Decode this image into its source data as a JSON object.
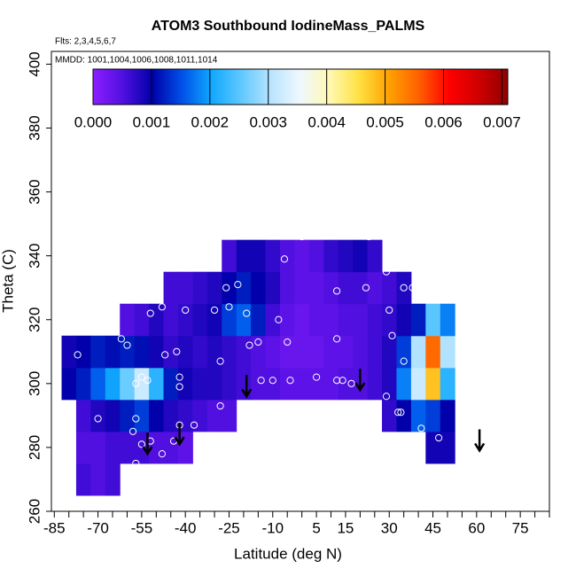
{
  "chart_data": {
    "type": "heatmap",
    "title": "ATOM3 Southbound IodineMass_PALMS",
    "subtitle": "Flts: 2,3,4,5,6,7",
    "annotation": "MMDD: 1001,1004,1006,1008,1011,1014",
    "xlabel": "Latitude (deg N)",
    "ylabel": "Theta (C)",
    "xlim": [
      -86,
      85
    ],
    "ylim": [
      260,
      404
    ],
    "xticks": [
      -85,
      -70,
      -55,
      -40,
      -25,
      -10,
      5,
      15,
      30,
      45,
      60,
      75
    ],
    "xminorticks": [
      -80,
      -75,
      -65,
      -60,
      -50,
      -45,
      -35,
      -30,
      -20,
      -15,
      -5,
      0,
      10,
      20,
      25,
      35,
      40,
      50,
      55,
      65,
      70,
      80,
      85
    ],
    "yticks": [
      260,
      280,
      300,
      320,
      340,
      360,
      380,
      400
    ],
    "x": [
      -80,
      -75,
      -70,
      -65,
      -60,
      -55,
      -50,
      -45,
      -40,
      -35,
      -30,
      -25,
      -20,
      -15,
      -10,
      -5,
      0,
      5,
      10,
      15,
      20,
      25,
      30,
      35,
      40,
      45,
      50,
      55
    ],
    "y": [
      270,
      280,
      290,
      300,
      310,
      320,
      330,
      340
    ],
    "z": [
      [
        null,
        0.0006,
        0.0005,
        0.0006,
        null,
        null,
        null,
        null,
        null,
        null,
        null,
        null,
        null,
        null,
        null,
        null,
        null,
        null,
        null,
        null,
        null,
        null,
        null,
        null,
        null,
        null,
        null,
        null
      ],
      [
        null,
        0.0005,
        0.0005,
        0.0006,
        0.0006,
        0.0006,
        0.0005,
        0.0005,
        0.0004,
        null,
        null,
        null,
        null,
        null,
        null,
        null,
        null,
        null,
        null,
        null,
        null,
        null,
        null,
        null,
        null,
        0.0009,
        0.0009,
        null
      ],
      [
        null,
        0.0006,
        0.0008,
        0.0009,
        0.0012,
        0.0014,
        0.001,
        0.0008,
        0.0007,
        0.0006,
        0.0005,
        0.0005,
        null,
        null,
        null,
        null,
        null,
        null,
        null,
        null,
        null,
        null,
        0.0007,
        0.001,
        0.0016,
        0.0014,
        0.001,
        null
      ],
      [
        0.001,
        0.0012,
        0.0016,
        0.002,
        0.0026,
        0.0032,
        0.0022,
        0.0012,
        0.0009,
        0.0008,
        0.0008,
        0.0007,
        0.0006,
        0.0005,
        0.0005,
        0.0004,
        0.0004,
        0.0004,
        0.0004,
        0.0005,
        0.0005,
        0.0006,
        0.0008,
        0.0018,
        0.0032,
        0.0048,
        0.0022,
        null
      ],
      [
        0.0009,
        0.001,
        0.0012,
        0.0011,
        0.0012,
        0.0011,
        0.0009,
        0.0007,
        0.0008,
        0.0007,
        0.0008,
        0.0007,
        0.0006,
        0.0005,
        0.0004,
        0.0003,
        0.0003,
        0.0003,
        0.0004,
        0.0004,
        0.0005,
        0.0006,
        0.0008,
        0.0014,
        0.003,
        0.0055,
        0.003,
        null
      ],
      [
        null,
        null,
        null,
        null,
        0.0005,
        0.0006,
        0.0008,
        0.0006,
        0.0007,
        0.0008,
        0.0009,
        0.0014,
        0.0016,
        0.0012,
        0.0006,
        0.0004,
        0.0003,
        0.0004,
        0.0004,
        0.0005,
        0.0005,
        0.0006,
        0.0007,
        0.0009,
        0.0012,
        0.0025,
        0.0018,
        null
      ],
      [
        null,
        null,
        null,
        null,
        null,
        null,
        null,
        0.0006,
        0.0006,
        0.0007,
        0.0008,
        0.001,
        0.0012,
        0.001,
        0.0008,
        0.0005,
        0.0004,
        0.0004,
        0.0005,
        0.0006,
        0.0006,
        0.0005,
        0.0006,
        0.0008,
        null,
        null,
        null,
        null
      ],
      [
        null,
        null,
        null,
        null,
        null,
        null,
        null,
        null,
        null,
        null,
        null,
        0.0006,
        0.0009,
        0.0009,
        0.0007,
        0.0005,
        0.0004,
        0.0005,
        0.0007,
        0.0008,
        0.0009,
        0.0007,
        null,
        null,
        null,
        null,
        null,
        null
      ]
    ],
    "observations": {
      "x": [
        -70,
        -57,
        -58,
        -55,
        -52,
        -48,
        -57,
        -44,
        -42,
        -37,
        -28,
        -42,
        -42,
        -57,
        -55,
        -53,
        -47,
        -43,
        -60,
        -62,
        -52,
        -48,
        -40,
        -30,
        -26,
        -22,
        -25,
        -19,
        -18,
        -28,
        -15,
        -5,
        -8,
        0,
        -6,
        -17,
        -14,
        -10,
        -4,
        5,
        12,
        14,
        17,
        12,
        12,
        22,
        29,
        30,
        31,
        29,
        33,
        34,
        35,
        38,
        35,
        41,
        47,
        55,
        23,
        -77
      ],
      "y": [
        289,
        289,
        285,
        281,
        282,
        278,
        275,
        282,
        287,
        287,
        293,
        299,
        302,
        300,
        302,
        301,
        309,
        310,
        312,
        314,
        322,
        324,
        323,
        323,
        330,
        331,
        324,
        322,
        312,
        307,
        313,
        313,
        320,
        346,
        339,
        348,
        301,
        301,
        301,
        302,
        301,
        301,
        300,
        314,
        329,
        330,
        335,
        323,
        315,
        296,
        291,
        291,
        307,
        330,
        330,
        286,
        283,
        283,
        346,
        309
      ]
    },
    "arrows": {
      "x": [
        -53,
        -42,
        -19,
        20,
        61
      ],
      "y": [
        278,
        281,
        296,
        298,
        279
      ]
    },
    "colorbar": {
      "lim": [
        0,
        0.0071
      ],
      "ticks": [
        {
          "value": 0,
          "label": "0.000"
        },
        {
          "value": 0.001,
          "label": "0.001"
        },
        {
          "value": 0.002,
          "label": "0.002"
        },
        {
          "value": 0.003,
          "label": "0.003"
        },
        {
          "value": 0.004,
          "label": "0.004"
        },
        {
          "value": 0.005,
          "label": "0.005"
        },
        {
          "value": 0.006,
          "label": "0.006"
        },
        {
          "value": 0.007,
          "label": "0.007"
        }
      ],
      "colors": [
        "#8c1eff",
        "#5010e0",
        "#0000a8",
        "#0050e8",
        "#10a8ff",
        "#60c8ff",
        "#b8e4ff",
        "#f0f8ff",
        "#fff8b0",
        "#ffe040",
        "#ffa000",
        "#ff6000",
        "#ff0000",
        "#d00000",
        "#900000"
      ]
    }
  }
}
